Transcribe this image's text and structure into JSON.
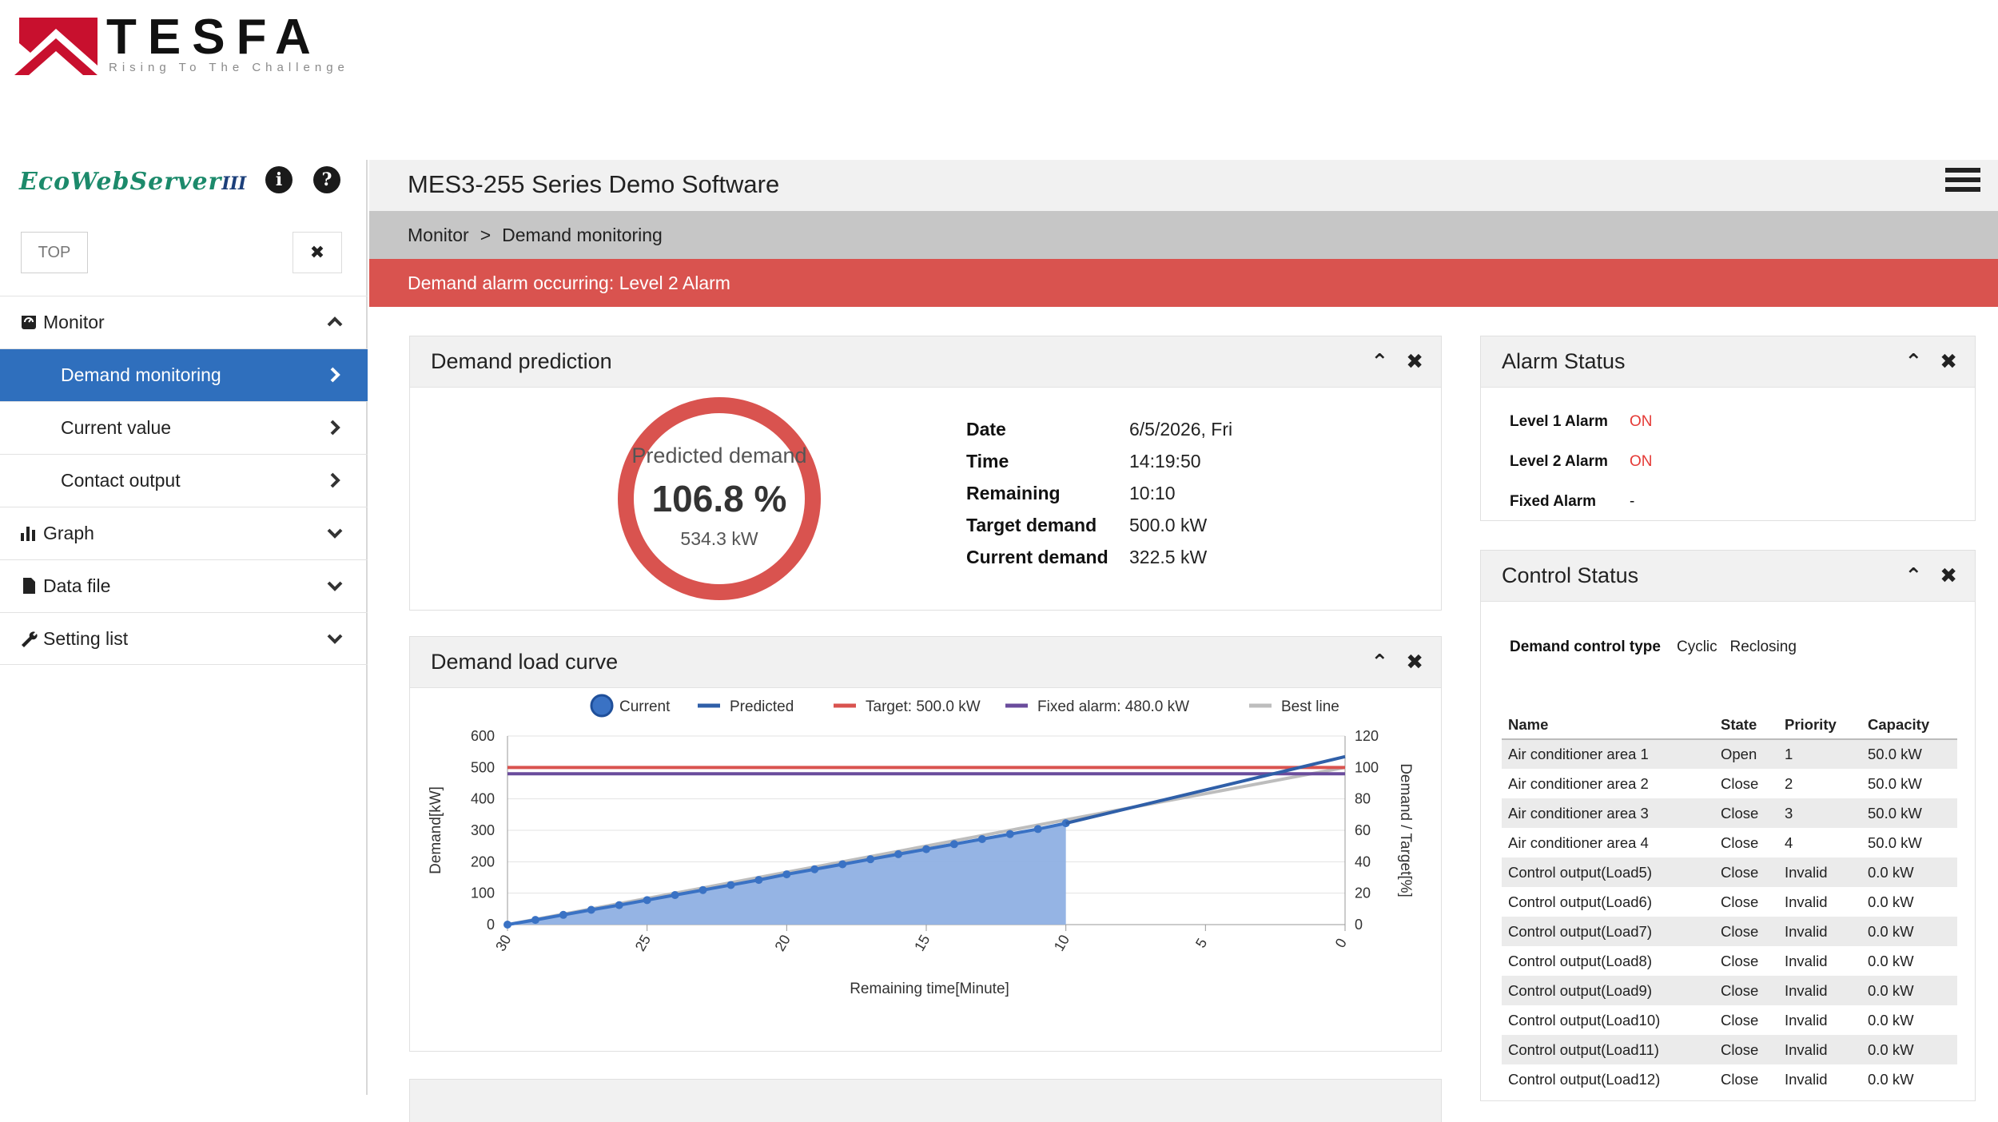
{
  "brand": {
    "name": "TESFA",
    "tagline": "Rising To The Challenge"
  },
  "sidebar": {
    "logo_text": "EcoWebServer",
    "logo_version": "III",
    "top_label": "TOP",
    "close_symbol": "✖",
    "items": [
      {
        "label": "Monitor",
        "icon": "gauge-icon",
        "chevron": "⌃",
        "type": "section"
      },
      {
        "label": "Demand monitoring",
        "chevron": "›",
        "type": "sub",
        "active": true
      },
      {
        "label": "Current value",
        "chevron": "›",
        "type": "sub"
      },
      {
        "label": "Contact output",
        "chevron": "›",
        "type": "sub"
      },
      {
        "label": "Graph",
        "icon": "bar-chart-icon",
        "chevron": "⌄",
        "type": "section"
      },
      {
        "label": "Data file",
        "icon": "file-icon",
        "chevron": "⌄",
        "type": "section"
      },
      {
        "label": "Setting list",
        "icon": "wrench-icon",
        "chevron": "⌄",
        "type": "section"
      }
    ]
  },
  "header": {
    "title": "MES3-255 Series Demo Software"
  },
  "breadcrumb": {
    "items": [
      "Monitor",
      "Demand monitoring"
    ],
    "separator": ">"
  },
  "alarm_banner": "Demand alarm occurring: Level 2 Alarm",
  "prediction": {
    "title": "Demand prediction",
    "gauge_label": "Predicted demand",
    "percent": "106.8 %",
    "kw": "534.3 kW",
    "info": [
      {
        "key": "Date",
        "value": "6/5/2026, Fri"
      },
      {
        "key": "Time",
        "value": "14:19:50"
      },
      {
        "key": "Remaining",
        "value": "10:10"
      },
      {
        "key": "Target demand",
        "value": "500.0 kW"
      },
      {
        "key": "Current demand",
        "value": "322.5 kW"
      }
    ]
  },
  "curve_panel": {
    "title": "Demand load curve"
  },
  "alarm_status": {
    "title": "Alarm Status",
    "rows": [
      {
        "key": "Level 1 Alarm",
        "value": "ON"
      },
      {
        "key": "Level 2 Alarm",
        "value": "ON"
      },
      {
        "key": "Fixed Alarm",
        "value": "-"
      }
    ]
  },
  "control_status": {
    "title": "Control Status",
    "type_label": "Demand control type",
    "type_value": "Cyclic   Reclosing",
    "columns": [
      "Name",
      "State",
      "Priority",
      "Capacity"
    ],
    "rows": [
      [
        "Air conditioner area 1",
        "Open",
        "1",
        "50.0 kW"
      ],
      [
        "Air conditioner area 2",
        "Close",
        "2",
        "50.0 kW"
      ],
      [
        "Air conditioner area 3",
        "Close",
        "3",
        "50.0 kW"
      ],
      [
        "Air conditioner area 4",
        "Close",
        "4",
        "50.0 kW"
      ],
      [
        "Control output(Load5)",
        "Close",
        "Invalid",
        "0.0 kW"
      ],
      [
        "Control output(Load6)",
        "Close",
        "Invalid",
        "0.0 kW"
      ],
      [
        "Control output(Load7)",
        "Close",
        "Invalid",
        "0.0 kW"
      ],
      [
        "Control output(Load8)",
        "Close",
        "Invalid",
        "0.0 kW"
      ],
      [
        "Control output(Load9)",
        "Close",
        "Invalid",
        "0.0 kW"
      ],
      [
        "Control output(Load10)",
        "Close",
        "Invalid",
        "0.0 kW"
      ],
      [
        "Control output(Load11)",
        "Close",
        "Invalid",
        "0.0 kW"
      ],
      [
        "Control output(Load12)",
        "Close",
        "Invalid",
        "0.0 kW"
      ]
    ]
  },
  "colors": {
    "accent": "#2f6fbd",
    "alarm": "#d9534f",
    "current": "#3a72c4",
    "area": "#8fb0e3",
    "target": "#d9534f",
    "fixed": "#6a4c9c",
    "best": "#bdbdbd"
  },
  "chart_data": {
    "type": "line",
    "x": [
      30,
      29,
      28,
      27,
      26,
      25,
      24,
      23,
      22,
      21,
      20,
      19,
      18,
      17,
      16,
      15,
      14,
      13,
      12,
      11,
      10
    ],
    "xticks": [
      "30",
      "25",
      "20",
      "15",
      "10",
      "5",
      "0"
    ],
    "xlim": [
      30,
      0
    ],
    "xlabel": "Remaining time[Minute]",
    "ylabel": "Demand[kW]",
    "ylabel_right": "Demand / Target[%]",
    "ylim": [
      0,
      600
    ],
    "ylim_right": [
      0,
      120
    ],
    "yticks": [
      0,
      100,
      200,
      300,
      400,
      500,
      600
    ],
    "yticks_right": [
      0,
      20,
      40,
      60,
      80,
      100,
      120
    ],
    "legend": [
      "Current",
      "Predicted",
      "Target: 500.0 kW",
      "Fixed alarm: 480.0 kW",
      "Best line"
    ],
    "legend_position": "top-center",
    "series": [
      {
        "name": "Current",
        "x": [
          30,
          29,
          28,
          27,
          26,
          25,
          24,
          23,
          22,
          21,
          20,
          19,
          18,
          17,
          16,
          15,
          14,
          13,
          12,
          11,
          10
        ],
        "values": [
          0,
          15,
          31,
          47,
          62,
          78,
          94,
          110,
          126,
          142,
          160,
          176,
          192,
          208,
          224,
          240,
          256,
          272,
          288,
          304,
          322.5
        ]
      },
      {
        "name": "Predicted",
        "x": [
          10,
          0
        ],
        "values": [
          322.5,
          534.3
        ]
      },
      {
        "name": "Target: 500.0 kW",
        "x": [
          30,
          0
        ],
        "values": [
          500,
          500
        ]
      },
      {
        "name": "Fixed alarm: 480.0 kW",
        "x": [
          30,
          0
        ],
        "values": [
          480,
          480
        ]
      },
      {
        "name": "Best line",
        "x": [
          30,
          0
        ],
        "values": [
          0,
          500
        ]
      }
    ]
  }
}
